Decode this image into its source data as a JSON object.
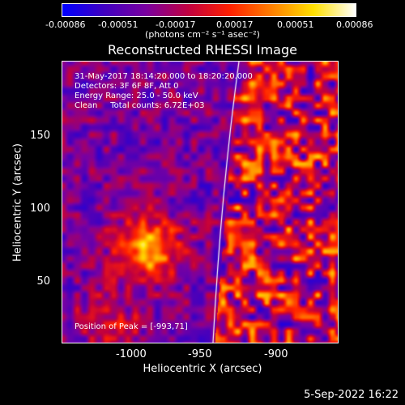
{
  "colorbar": {
    "tick_labels": [
      "-0.00086",
      "-0.00051",
      "-0.00017",
      "0.00017",
      "0.00051",
      "0.00086"
    ],
    "units_label": "(photons cm⁻² s⁻¹ asec⁻²)",
    "colors": [
      "#0000ff",
      "#4000c0",
      "#7a00a0",
      "#c00040",
      "#ff2000",
      "#ff8000",
      "#ffe000",
      "#ffffff"
    ]
  },
  "title": "Reconstructed RHESSI Image",
  "info": {
    "line1": "31-May-2017 18:14:20.000 to 18:20:20.000",
    "line2": "Detectors: 3F 6F 8F, Att 0",
    "line3": "Energy Range: 25.0 - 50.0 keV",
    "line4": "Clean     Total counts: 6.72E+03",
    "peak": "Position of Peak = [-993,71]"
  },
  "axes": {
    "xlabel": "Heliocentric X (arcsec)",
    "ylabel": "Heliocentric Y (arcsec)",
    "xticks": [
      "-1000",
      "-950",
      "-900"
    ],
    "yticks": [
      "150",
      "100",
      "50"
    ]
  },
  "timestamp": "5-Sep-2022 16:22"
}
